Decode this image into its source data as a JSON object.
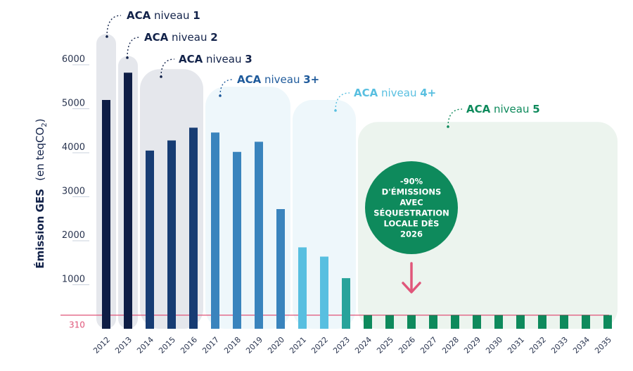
{
  "colors": {
    "dark_navy": "#0f1e45",
    "navy": "#173c73",
    "blue": "#1e5a9b",
    "steel": "#3a84bd",
    "light_blue": "#58bfe0",
    "teal": "#28a39b",
    "green": "#0e8a5c",
    "pink": "#e0567a",
    "grid": "#c9d1dd",
    "bg_gray": "#e5e7ec",
    "bg_blue": "#eef7fb",
    "bg_green": "#ecf4ee"
  },
  "chart_data": {
    "type": "bar",
    "title": "",
    "ylabel": "Émission GES",
    "ylabel_unit": "(en teqCO",
    "ylabel_unit_sub": "2",
    "ylabel_unit_end": ")",
    "ylim": [
      0,
      6700
    ],
    "yticks": [
      1000,
      2000,
      3000,
      4000,
      5000,
      6000
    ],
    "categories": [
      "2012",
      "2013",
      "2014",
      "2015",
      "2016",
      "2017",
      "2018",
      "2019",
      "2020",
      "2021",
      "2022",
      "2023",
      "2024",
      "2025",
      "2026",
      "2027",
      "2028",
      "2029",
      "2030",
      "2031",
      "2032",
      "2033",
      "2034",
      "2035"
    ],
    "values": [
      5200,
      5820,
      4050,
      4280,
      4570,
      4460,
      4020,
      4250,
      2720,
      1850,
      1640,
      1150,
      310,
      310,
      310,
      310,
      310,
      310,
      310,
      310,
      310,
      310,
      310,
      310
    ],
    "bar_colors": [
      "dark_navy",
      "dark_navy",
      "navy",
      "navy",
      "navy",
      "steel",
      "steel",
      "steel",
      "steel",
      "light_blue",
      "light_blue",
      "teal",
      "green",
      "green",
      "green",
      "green",
      "green",
      "green",
      "green",
      "green",
      "green",
      "green",
      "green",
      "green"
    ],
    "reference_line": {
      "value": 310,
      "label": "310"
    },
    "levels": [
      {
        "bold": "ACA",
        "normal": " niveau ",
        "num": "1",
        "color": "#13234a",
        "bg": "bg_gray",
        "from": 0,
        "to": 0,
        "top": 6700
      },
      {
        "bold": "ACA",
        "normal": " niveau ",
        "num": "2",
        "color": "#13234a",
        "bg": "bg_gray",
        "from": 1,
        "to": 1,
        "top": 6200
      },
      {
        "bold": "ACA",
        "normal": " niveau ",
        "num": "3",
        "color": "#13234a",
        "bg": "bg_gray",
        "from": 2,
        "to": 4,
        "top": 5900
      },
      {
        "bold": "ACA",
        "normal": " niveau ",
        "num": "3+",
        "color": "#1e5a9b",
        "bg": "bg_blue",
        "from": 5,
        "to": 8,
        "top": 5500
      },
      {
        "bold": "ACA",
        "normal": " niveau ",
        "num": "4+",
        "color": "#58bfe0",
        "bg": "bg_blue",
        "from": 9,
        "to": 11,
        "top": 5200
      },
      {
        "bold": "ACA",
        "normal": " niveau ",
        "num": "5",
        "color": "#0e8a5c",
        "bg": "bg_green",
        "from": 12,
        "to": 23,
        "top": 4700
      }
    ],
    "annotation": {
      "lines": [
        "-90%",
        "D'ÉMISSIONS",
        "AVEC",
        "SÉQUESTRATION",
        "LOCALE DÈS",
        "2026"
      ],
      "year": "2026"
    }
  }
}
